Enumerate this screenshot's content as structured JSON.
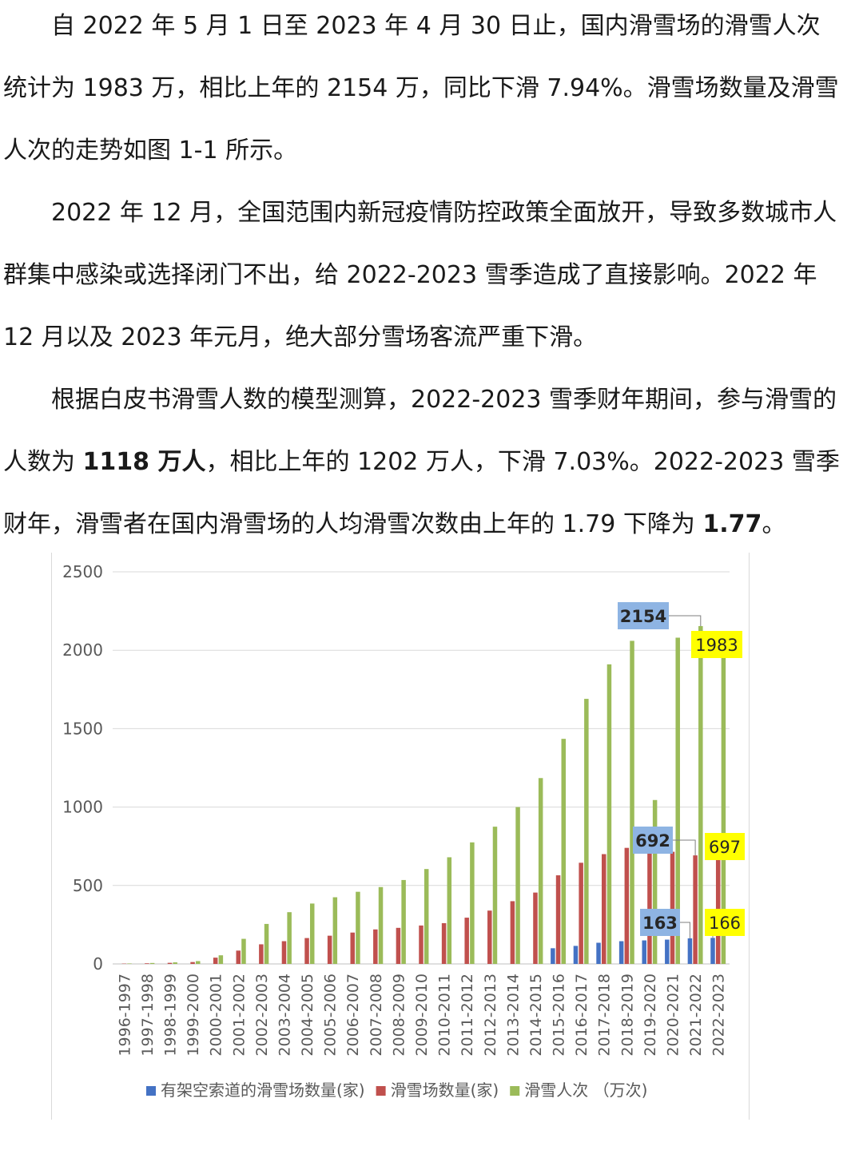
{
  "article": {
    "p1": "自 2022 年 5 月 1 日至 2023 年 4 月 30 日止，国内滑雪场的滑雪人次统计为 1983 万，相比上年的 2154 万，同比下滑 7.94%。滑雪场数量及滑雪人次的走势如图 1-1 所示。",
    "p2": "2022 年 12 月，全国范围内新冠疫情防控政策全面放开，导致多数城市人群集中感染或选择闭门不出，给 2022-2023 雪季造成了直接影响。2022 年 12 月以及 2023 年元月，绝大部分雪场客流严重下滑。",
    "p3_a": "根据白皮书滑雪人数的模型测算，2022-2023 雪季财年期间，参与滑雪的人数为 ",
    "p3_b1": "1118 万人",
    "p3_c": "，相比上年的 1202 万人，下滑 7.03%。2022-2023 雪季财年，滑雪者在国内滑雪场的人均滑雪次数由上年的 1.79 下降为 ",
    "p3_b2": "1.77",
    "p3_d": "。"
  },
  "chart_data": {
    "type": "bar",
    "title": "",
    "xlabel": "",
    "ylabel": "",
    "ylim": [
      0,
      2500
    ],
    "yticks": [
      0,
      500,
      1000,
      1500,
      2000,
      2500
    ],
    "grid": true,
    "legend_position": "bottom",
    "categories": [
      "1996-1997",
      "1997-1998",
      "1998-1999",
      "1999-2000",
      "2000-2001",
      "2001-2002",
      "2002-2003",
      "2003-2004",
      "2004-2005",
      "2005-2006",
      "2006-2007",
      "2007-2008",
      "2008-2009",
      "2009-2010",
      "2010-2011",
      "2011-2012",
      "2012-2013",
      "2013-2014",
      "2014-2015",
      "2015-2016",
      "2016-2017",
      "2017-2018",
      "2018-2019",
      "2019-2020",
      "2020-2021",
      "2021-2022",
      "2022-2023"
    ],
    "series": [
      {
        "name": "有架空索道的滑雪场数量(家)",
        "color": "#4472c4",
        "values": [
          0,
          0,
          0,
          0,
          0,
          0,
          0,
          0,
          0,
          0,
          0,
          0,
          0,
          0,
          0,
          0,
          0,
          0,
          0,
          100,
          115,
          135,
          145,
          150,
          155,
          163,
          166
        ]
      },
      {
        "name": "滑雪场数量(家)",
        "color": "#c0504d",
        "values": [
          2,
          4,
          7,
          12,
          40,
          85,
          125,
          145,
          165,
          180,
          200,
          220,
          230,
          245,
          260,
          295,
          340,
          400,
          455,
          565,
          645,
          700,
          740,
          770,
          715,
          692,
          697
        ]
      },
      {
        "name": "滑雪人次 （万次)",
        "color": "#9bbb59",
        "values": [
          3,
          6,
          10,
          18,
          55,
          160,
          255,
          330,
          385,
          425,
          460,
          490,
          535,
          605,
          680,
          775,
          875,
          1000,
          1185,
          1435,
          1690,
          1910,
          2060,
          1045,
          2080,
          2154,
          1983
        ]
      }
    ],
    "annotations": [
      {
        "series": 2,
        "index": 25,
        "text": "2154",
        "style": "blue"
      },
      {
        "series": 2,
        "index": 26,
        "text": "1983",
        "style": "yellow"
      },
      {
        "series": 1,
        "index": 25,
        "text": "692",
        "style": "blue"
      },
      {
        "series": 1,
        "index": 26,
        "text": "697",
        "style": "yellow"
      },
      {
        "series": 0,
        "index": 25,
        "text": "163",
        "style": "blue"
      },
      {
        "series": 0,
        "index": 26,
        "text": "166",
        "style": "yellow"
      }
    ],
    "label_colors": {
      "blue": "#8eb4e3",
      "yellow": "#ffff00"
    }
  }
}
